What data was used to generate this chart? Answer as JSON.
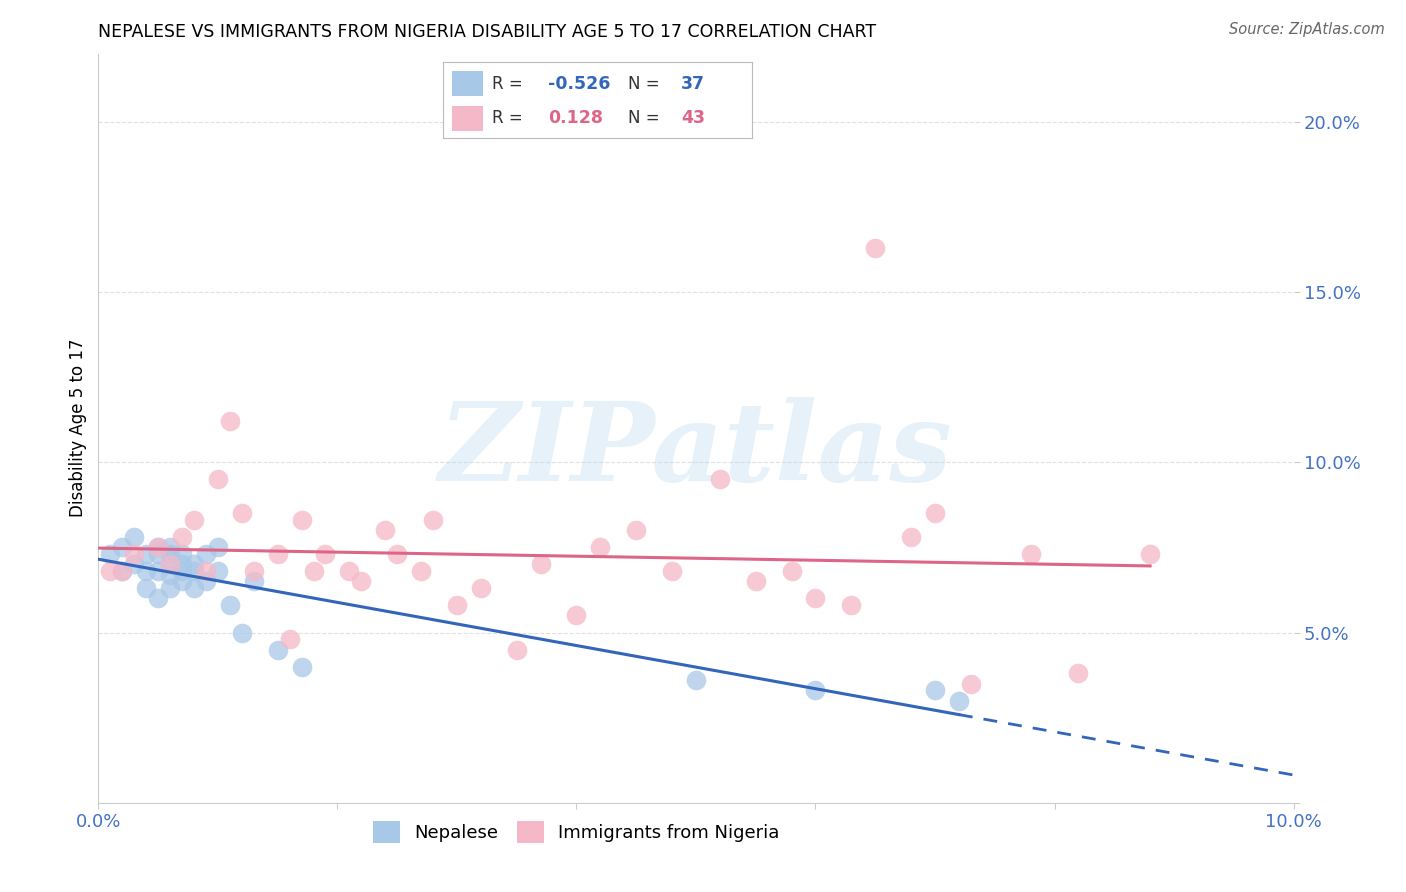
{
  "title": "NEPALESE VS IMMIGRANTS FROM NIGERIA DISABILITY AGE 5 TO 17 CORRELATION CHART",
  "source": "Source: ZipAtlas.com",
  "tick_color": "#4472c4",
  "ylabel": "Disability Age 5 to 17",
  "xlim": [
    0.0,
    0.1
  ],
  "ylim": [
    0.0,
    0.22
  ],
  "xticks": [
    0.0,
    0.02,
    0.04,
    0.06,
    0.08,
    0.1
  ],
  "yticks": [
    0.0,
    0.05,
    0.1,
    0.15,
    0.2
  ],
  "blue_R": -0.526,
  "blue_N": 37,
  "pink_R": 0.128,
  "pink_N": 43,
  "blue_color": "#a8c8e8",
  "pink_color": "#f5b8c8",
  "blue_line_color": "#3366bb",
  "pink_line_color": "#dd6688",
  "watermark": "ZIPatlas",
  "blue_scatter_x": [
    0.001,
    0.002,
    0.002,
    0.003,
    0.003,
    0.004,
    0.004,
    0.004,
    0.005,
    0.005,
    0.005,
    0.005,
    0.006,
    0.006,
    0.006,
    0.006,
    0.006,
    0.007,
    0.007,
    0.007,
    0.007,
    0.008,
    0.008,
    0.008,
    0.009,
    0.009,
    0.01,
    0.01,
    0.011,
    0.012,
    0.013,
    0.015,
    0.017,
    0.05,
    0.06,
    0.07,
    0.072
  ],
  "blue_scatter_y": [
    0.073,
    0.075,
    0.068,
    0.078,
    0.07,
    0.073,
    0.068,
    0.063,
    0.075,
    0.073,
    0.068,
    0.06,
    0.075,
    0.073,
    0.07,
    0.067,
    0.063,
    0.073,
    0.07,
    0.068,
    0.065,
    0.07,
    0.068,
    0.063,
    0.073,
    0.065,
    0.075,
    0.068,
    0.058,
    0.05,
    0.065,
    0.045,
    0.04,
    0.036,
    0.033,
    0.033,
    0.03
  ],
  "pink_scatter_x": [
    0.001,
    0.002,
    0.003,
    0.005,
    0.006,
    0.007,
    0.008,
    0.009,
    0.01,
    0.011,
    0.012,
    0.013,
    0.015,
    0.016,
    0.017,
    0.018,
    0.019,
    0.021,
    0.022,
    0.024,
    0.025,
    0.027,
    0.028,
    0.03,
    0.032,
    0.035,
    0.037,
    0.04,
    0.042,
    0.045,
    0.048,
    0.052,
    0.055,
    0.058,
    0.06,
    0.063,
    0.065,
    0.068,
    0.07,
    0.073,
    0.078,
    0.082,
    0.088
  ],
  "pink_scatter_y": [
    0.068,
    0.068,
    0.073,
    0.075,
    0.07,
    0.078,
    0.083,
    0.068,
    0.095,
    0.112,
    0.085,
    0.068,
    0.073,
    0.048,
    0.083,
    0.068,
    0.073,
    0.068,
    0.065,
    0.08,
    0.073,
    0.068,
    0.083,
    0.058,
    0.063,
    0.045,
    0.07,
    0.055,
    0.075,
    0.08,
    0.068,
    0.095,
    0.065,
    0.068,
    0.06,
    0.058,
    0.163,
    0.078,
    0.085,
    0.035,
    0.073,
    0.038,
    0.073
  ],
  "background_color": "#ffffff",
  "grid_color": "#e0e0e0"
}
